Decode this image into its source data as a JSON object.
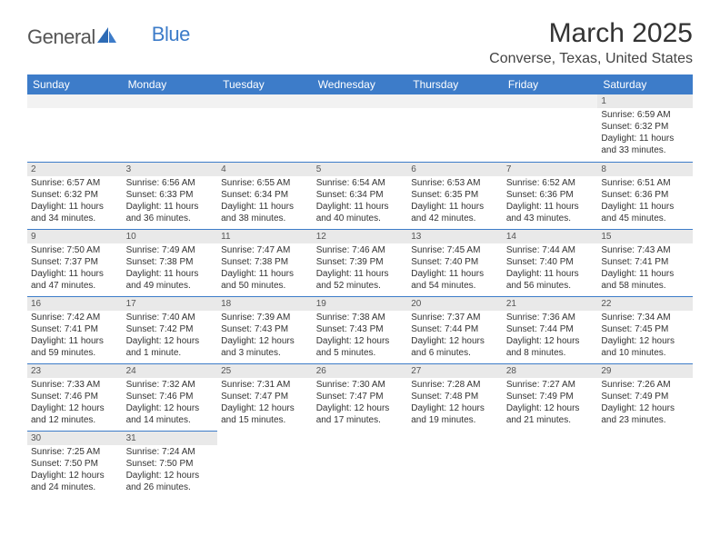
{
  "logo": {
    "text_general": "General",
    "text_blue": "Blue"
  },
  "title": "March 2025",
  "location": "Converse, Texas, United States",
  "day_headers": [
    "Sunday",
    "Monday",
    "Tuesday",
    "Wednesday",
    "Thursday",
    "Friday",
    "Saturday"
  ],
  "colors": {
    "header_bg": "#3d7cc9",
    "header_text": "#ffffff",
    "daynum_bg": "#e9e9e9",
    "border": "#3d7cc9"
  },
  "weeks": [
    [
      {
        "n": "",
        "sunrise": "",
        "sunset": "",
        "daylight1": "",
        "daylight2": ""
      },
      {
        "n": "",
        "sunrise": "",
        "sunset": "",
        "daylight1": "",
        "daylight2": ""
      },
      {
        "n": "",
        "sunrise": "",
        "sunset": "",
        "daylight1": "",
        "daylight2": ""
      },
      {
        "n": "",
        "sunrise": "",
        "sunset": "",
        "daylight1": "",
        "daylight2": ""
      },
      {
        "n": "",
        "sunrise": "",
        "sunset": "",
        "daylight1": "",
        "daylight2": ""
      },
      {
        "n": "",
        "sunrise": "",
        "sunset": "",
        "daylight1": "",
        "daylight2": ""
      },
      {
        "n": "1",
        "sunrise": "Sunrise: 6:59 AM",
        "sunset": "Sunset: 6:32 PM",
        "daylight1": "Daylight: 11 hours",
        "daylight2": "and 33 minutes."
      }
    ],
    [
      {
        "n": "2",
        "sunrise": "Sunrise: 6:57 AM",
        "sunset": "Sunset: 6:32 PM",
        "daylight1": "Daylight: 11 hours",
        "daylight2": "and 34 minutes."
      },
      {
        "n": "3",
        "sunrise": "Sunrise: 6:56 AM",
        "sunset": "Sunset: 6:33 PM",
        "daylight1": "Daylight: 11 hours",
        "daylight2": "and 36 minutes."
      },
      {
        "n": "4",
        "sunrise": "Sunrise: 6:55 AM",
        "sunset": "Sunset: 6:34 PM",
        "daylight1": "Daylight: 11 hours",
        "daylight2": "and 38 minutes."
      },
      {
        "n": "5",
        "sunrise": "Sunrise: 6:54 AM",
        "sunset": "Sunset: 6:34 PM",
        "daylight1": "Daylight: 11 hours",
        "daylight2": "and 40 minutes."
      },
      {
        "n": "6",
        "sunrise": "Sunrise: 6:53 AM",
        "sunset": "Sunset: 6:35 PM",
        "daylight1": "Daylight: 11 hours",
        "daylight2": "and 42 minutes."
      },
      {
        "n": "7",
        "sunrise": "Sunrise: 6:52 AM",
        "sunset": "Sunset: 6:36 PM",
        "daylight1": "Daylight: 11 hours",
        "daylight2": "and 43 minutes."
      },
      {
        "n": "8",
        "sunrise": "Sunrise: 6:51 AM",
        "sunset": "Sunset: 6:36 PM",
        "daylight1": "Daylight: 11 hours",
        "daylight2": "and 45 minutes."
      }
    ],
    [
      {
        "n": "9",
        "sunrise": "Sunrise: 7:50 AM",
        "sunset": "Sunset: 7:37 PM",
        "daylight1": "Daylight: 11 hours",
        "daylight2": "and 47 minutes."
      },
      {
        "n": "10",
        "sunrise": "Sunrise: 7:49 AM",
        "sunset": "Sunset: 7:38 PM",
        "daylight1": "Daylight: 11 hours",
        "daylight2": "and 49 minutes."
      },
      {
        "n": "11",
        "sunrise": "Sunrise: 7:47 AM",
        "sunset": "Sunset: 7:38 PM",
        "daylight1": "Daylight: 11 hours",
        "daylight2": "and 50 minutes."
      },
      {
        "n": "12",
        "sunrise": "Sunrise: 7:46 AM",
        "sunset": "Sunset: 7:39 PM",
        "daylight1": "Daylight: 11 hours",
        "daylight2": "and 52 minutes."
      },
      {
        "n": "13",
        "sunrise": "Sunrise: 7:45 AM",
        "sunset": "Sunset: 7:40 PM",
        "daylight1": "Daylight: 11 hours",
        "daylight2": "and 54 minutes."
      },
      {
        "n": "14",
        "sunrise": "Sunrise: 7:44 AM",
        "sunset": "Sunset: 7:40 PM",
        "daylight1": "Daylight: 11 hours",
        "daylight2": "and 56 minutes."
      },
      {
        "n": "15",
        "sunrise": "Sunrise: 7:43 AM",
        "sunset": "Sunset: 7:41 PM",
        "daylight1": "Daylight: 11 hours",
        "daylight2": "and 58 minutes."
      }
    ],
    [
      {
        "n": "16",
        "sunrise": "Sunrise: 7:42 AM",
        "sunset": "Sunset: 7:41 PM",
        "daylight1": "Daylight: 11 hours",
        "daylight2": "and 59 minutes."
      },
      {
        "n": "17",
        "sunrise": "Sunrise: 7:40 AM",
        "sunset": "Sunset: 7:42 PM",
        "daylight1": "Daylight: 12 hours",
        "daylight2": "and 1 minute."
      },
      {
        "n": "18",
        "sunrise": "Sunrise: 7:39 AM",
        "sunset": "Sunset: 7:43 PM",
        "daylight1": "Daylight: 12 hours",
        "daylight2": "and 3 minutes."
      },
      {
        "n": "19",
        "sunrise": "Sunrise: 7:38 AM",
        "sunset": "Sunset: 7:43 PM",
        "daylight1": "Daylight: 12 hours",
        "daylight2": "and 5 minutes."
      },
      {
        "n": "20",
        "sunrise": "Sunrise: 7:37 AM",
        "sunset": "Sunset: 7:44 PM",
        "daylight1": "Daylight: 12 hours",
        "daylight2": "and 6 minutes."
      },
      {
        "n": "21",
        "sunrise": "Sunrise: 7:36 AM",
        "sunset": "Sunset: 7:44 PM",
        "daylight1": "Daylight: 12 hours",
        "daylight2": "and 8 minutes."
      },
      {
        "n": "22",
        "sunrise": "Sunrise: 7:34 AM",
        "sunset": "Sunset: 7:45 PM",
        "daylight1": "Daylight: 12 hours",
        "daylight2": "and 10 minutes."
      }
    ],
    [
      {
        "n": "23",
        "sunrise": "Sunrise: 7:33 AM",
        "sunset": "Sunset: 7:46 PM",
        "daylight1": "Daylight: 12 hours",
        "daylight2": "and 12 minutes."
      },
      {
        "n": "24",
        "sunrise": "Sunrise: 7:32 AM",
        "sunset": "Sunset: 7:46 PM",
        "daylight1": "Daylight: 12 hours",
        "daylight2": "and 14 minutes."
      },
      {
        "n": "25",
        "sunrise": "Sunrise: 7:31 AM",
        "sunset": "Sunset: 7:47 PM",
        "daylight1": "Daylight: 12 hours",
        "daylight2": "and 15 minutes."
      },
      {
        "n": "26",
        "sunrise": "Sunrise: 7:30 AM",
        "sunset": "Sunset: 7:47 PM",
        "daylight1": "Daylight: 12 hours",
        "daylight2": "and 17 minutes."
      },
      {
        "n": "27",
        "sunrise": "Sunrise: 7:28 AM",
        "sunset": "Sunset: 7:48 PM",
        "daylight1": "Daylight: 12 hours",
        "daylight2": "and 19 minutes."
      },
      {
        "n": "28",
        "sunrise": "Sunrise: 7:27 AM",
        "sunset": "Sunset: 7:49 PM",
        "daylight1": "Daylight: 12 hours",
        "daylight2": "and 21 minutes."
      },
      {
        "n": "29",
        "sunrise": "Sunrise: 7:26 AM",
        "sunset": "Sunset: 7:49 PM",
        "daylight1": "Daylight: 12 hours",
        "daylight2": "and 23 minutes."
      }
    ],
    [
      {
        "n": "30",
        "sunrise": "Sunrise: 7:25 AM",
        "sunset": "Sunset: 7:50 PM",
        "daylight1": "Daylight: 12 hours",
        "daylight2": "and 24 minutes."
      },
      {
        "n": "31",
        "sunrise": "Sunrise: 7:24 AM",
        "sunset": "Sunset: 7:50 PM",
        "daylight1": "Daylight: 12 hours",
        "daylight2": "and 26 minutes."
      },
      {
        "n": "",
        "sunrise": "",
        "sunset": "",
        "daylight1": "",
        "daylight2": ""
      },
      {
        "n": "",
        "sunrise": "",
        "sunset": "",
        "daylight1": "",
        "daylight2": ""
      },
      {
        "n": "",
        "sunrise": "",
        "sunset": "",
        "daylight1": "",
        "daylight2": ""
      },
      {
        "n": "",
        "sunrise": "",
        "sunset": "",
        "daylight1": "",
        "daylight2": ""
      },
      {
        "n": "",
        "sunrise": "",
        "sunset": "",
        "daylight1": "",
        "daylight2": ""
      }
    ]
  ]
}
